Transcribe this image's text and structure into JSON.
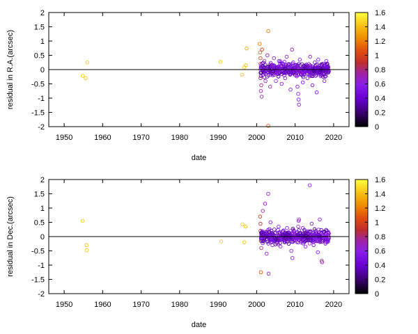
{
  "chart_data": [
    {
      "type": "scatter",
      "xlabel": "date",
      "ylabel": "residual in R.A.(arcsec)",
      "xlim": [
        1946,
        2024
      ],
      "ylim": [
        -2,
        2
      ],
      "xticks": [
        "1950",
        "1960",
        "1970",
        "1980",
        "1990",
        "2000",
        "2010",
        "2020"
      ],
      "yticks": [
        "-2",
        "-1.5",
        "-1",
        "-0.5",
        "0",
        "0.5",
        "1",
        "1.5",
        "2"
      ],
      "zero_line": true,
      "colorbar": {
        "range": [
          0,
          1.6
        ],
        "ticks": [
          "0",
          "0.2",
          "0.4",
          "0.6",
          "0.8",
          "1",
          "1.2",
          "1.4",
          "1.6"
        ],
        "palette": [
          "#000000",
          "#3a0070",
          "#6a00d8",
          "#8a1ee8",
          "#a0249e",
          "#c02c2c",
          "#e04a10",
          "#f08a00",
          "#f8c010",
          "#ffff40"
        ]
      },
      "points": [
        {
          "x": 1954.8,
          "y": -0.22,
          "c": 1.45
        },
        {
          "x": 1955.6,
          "y": -0.3,
          "c": 1.45
        },
        {
          "x": 1956.0,
          "y": 0.25,
          "c": 1.45
        },
        {
          "x": 1990.6,
          "y": 0.27,
          "c": 1.45
        },
        {
          "x": 1996.2,
          "y": -0.18,
          "c": 1.45
        },
        {
          "x": 1996.8,
          "y": 0.08,
          "c": 1.45
        },
        {
          "x": 1997.2,
          "y": 0.15,
          "c": 1.4
        },
        {
          "x": 1997.4,
          "y": 0.74,
          "c": 1.35
        },
        {
          "x": 2000.8,
          "y": 0.9,
          "c": 1.2
        },
        {
          "x": 2000.9,
          "y": 0.6,
          "c": 1.15
        },
        {
          "x": 2001.0,
          "y": 0.4,
          "c": 1.0
        },
        {
          "x": 2001.0,
          "y": 0.2,
          "c": 0.9
        },
        {
          "x": 2001.1,
          "y": -0.1,
          "c": 0.85
        },
        {
          "x": 2001.0,
          "y": -0.3,
          "c": 0.8
        },
        {
          "x": 2001.2,
          "y": -0.55,
          "c": 0.75
        },
        {
          "x": 2001.1,
          "y": -0.75,
          "c": 0.7
        },
        {
          "x": 2001.3,
          "y": -0.95,
          "c": 0.7
        },
        {
          "x": 2001.3,
          "y": 0.05,
          "c": 0.9
        },
        {
          "x": 2001.4,
          "y": 0.7,
          "c": 1.0
        },
        {
          "x": 2002.0,
          "y": 0.3,
          "c": 0.7
        },
        {
          "x": 2002.3,
          "y": -0.4,
          "c": 0.6
        },
        {
          "x": 2002.8,
          "y": 0.5,
          "c": 0.65
        },
        {
          "x": 2003.0,
          "y": 1.35,
          "c": 1.2
        },
        {
          "x": 2003.0,
          "y": -1.97,
          "c": 1.1
        },
        {
          "x": 2003.5,
          "y": -0.6,
          "c": 0.6
        },
        {
          "x": 2003.8,
          "y": 0.15,
          "c": 0.55
        },
        {
          "x": 2004.2,
          "y": -0.2,
          "c": 0.5
        },
        {
          "x": 2004.5,
          "y": 0.4,
          "c": 0.6
        },
        {
          "x": 2005.0,
          "y": -0.4,
          "c": 0.55
        },
        {
          "x": 2005.4,
          "y": 0.1,
          "c": 0.45
        },
        {
          "x": 2005.8,
          "y": 0.3,
          "c": 0.5
        },
        {
          "x": 2006.1,
          "y": -0.1,
          "c": 0.45
        },
        {
          "x": 2006.5,
          "y": -0.5,
          "c": 0.55
        },
        {
          "x": 2007.0,
          "y": 0.2,
          "c": 0.5
        },
        {
          "x": 2007.4,
          "y": -0.3,
          "c": 0.5
        },
        {
          "x": 2007.8,
          "y": 0.45,
          "c": 0.55
        },
        {
          "x": 2008.3,
          "y": 0.05,
          "c": 0.5
        },
        {
          "x": 2008.8,
          "y": -0.7,
          "c": 0.6
        },
        {
          "x": 2009.2,
          "y": 0.7,
          "c": 0.6
        },
        {
          "x": 2009.5,
          "y": 0.25,
          "c": 0.55
        },
        {
          "x": 2010.0,
          "y": -0.2,
          "c": 0.5
        },
        {
          "x": 2010.6,
          "y": -0.6,
          "c": 0.5
        },
        {
          "x": 2010.8,
          "y": -0.85,
          "c": 0.55
        },
        {
          "x": 2010.9,
          "y": -1.05,
          "c": 0.55
        },
        {
          "x": 2011.0,
          "y": -1.23,
          "c": 0.55
        },
        {
          "x": 2011.2,
          "y": 0.35,
          "c": 0.5
        },
        {
          "x": 2012.0,
          "y": -0.45,
          "c": 0.5
        },
        {
          "x": 2012.6,
          "y": 0.15,
          "c": 0.4
        },
        {
          "x": 2013.2,
          "y": -0.3,
          "c": 0.45
        },
        {
          "x": 2013.9,
          "y": 0.45,
          "c": 0.55
        },
        {
          "x": 2014.5,
          "y": -0.55,
          "c": 0.5
        },
        {
          "x": 2015.1,
          "y": 0.25,
          "c": 0.45
        },
        {
          "x": 2015.6,
          "y": -0.8,
          "c": 0.55
        },
        {
          "x": 2016.0,
          "y": 0.35,
          "c": 0.5
        },
        {
          "x": 2016.6,
          "y": -0.15,
          "c": 0.45
        },
        {
          "x": 2017.2,
          "y": 0.05,
          "c": 0.3
        },
        {
          "x": 2017.6,
          "y": -0.4,
          "c": 0.5
        },
        {
          "x": 2018.1,
          "y": 0.3,
          "c": 0.5
        },
        {
          "x": 2018.6,
          "y": 0.0,
          "c": 0.2
        }
      ]
    },
    {
      "type": "scatter",
      "xlabel": "date",
      "ylabel": "residual in Dec.(arcsec)",
      "xlim": [
        1946,
        2024
      ],
      "ylim": [
        -2,
        2
      ],
      "xticks": [
        "1950",
        "1960",
        "1970",
        "1980",
        "1990",
        "2000",
        "2010",
        "2020"
      ],
      "yticks": [
        "-2",
        "-1.5",
        "-1",
        "-0.5",
        "0",
        "0.5",
        "1",
        "1.5",
        "2"
      ],
      "zero_line": true,
      "colorbar": {
        "range": [
          0,
          1.6
        ],
        "ticks": [
          "0",
          "0.2",
          "0.4",
          "0.6",
          "0.8",
          "1",
          "1.2",
          "1.4",
          "1.6"
        ],
        "palette": [
          "#000000",
          "#3a0070",
          "#6a00d8",
          "#8a1ee8",
          "#a0249e",
          "#c02c2c",
          "#e04a10",
          "#f08a00",
          "#f8c010",
          "#ffff40"
        ]
      },
      "points": [
        {
          "x": 1954.8,
          "y": 0.55,
          "c": 1.45
        },
        {
          "x": 1955.8,
          "y": -0.3,
          "c": 1.45
        },
        {
          "x": 1955.9,
          "y": -0.48,
          "c": 1.45
        },
        {
          "x": 1990.8,
          "y": -0.17,
          "c": 1.45
        },
        {
          "x": 1996.3,
          "y": 0.43,
          "c": 1.45
        },
        {
          "x": 1996.8,
          "y": -0.2,
          "c": 1.45
        },
        {
          "x": 1997.1,
          "y": 0.35,
          "c": 1.4
        },
        {
          "x": 2000.9,
          "y": 0.7,
          "c": 1.0
        },
        {
          "x": 2001.0,
          "y": 0.45,
          "c": 0.9
        },
        {
          "x": 2001.0,
          "y": 0.2,
          "c": 0.85
        },
        {
          "x": 2001.1,
          "y": -0.15,
          "c": 0.8
        },
        {
          "x": 2001.2,
          "y": -0.4,
          "c": 0.8
        },
        {
          "x": 2001.1,
          "y": -1.25,
          "c": 1.1
        },
        {
          "x": 2001.6,
          "y": 0.9,
          "c": 0.65
        },
        {
          "x": 2002.2,
          "y": 1.15,
          "c": 0.6
        },
        {
          "x": 2002.6,
          "y": -0.6,
          "c": 0.6
        },
        {
          "x": 2003.0,
          "y": 1.5,
          "c": 0.6
        },
        {
          "x": 2003.1,
          "y": -1.3,
          "c": 0.6
        },
        {
          "x": 2003.6,
          "y": 0.5,
          "c": 0.55
        },
        {
          "x": 2004.1,
          "y": -0.3,
          "c": 0.55
        },
        {
          "x": 2004.6,
          "y": 0.25,
          "c": 0.5
        },
        {
          "x": 2005.2,
          "y": -0.1,
          "c": 0.5
        },
        {
          "x": 2005.7,
          "y": 0.35,
          "c": 0.5
        },
        {
          "x": 2006.2,
          "y": -0.35,
          "c": 0.55
        },
        {
          "x": 2006.8,
          "y": 0.05,
          "c": 0.45
        },
        {
          "x": 2007.3,
          "y": -0.2,
          "c": 0.45
        },
        {
          "x": 2007.9,
          "y": 0.3,
          "c": 0.5
        },
        {
          "x": 2008.4,
          "y": -0.1,
          "c": 0.45
        },
        {
          "x": 2009.0,
          "y": -0.5,
          "c": 0.55
        },
        {
          "x": 2009.3,
          "y": -0.75,
          "c": 0.55
        },
        {
          "x": 2009.7,
          "y": 0.2,
          "c": 0.5
        },
        {
          "x": 2010.3,
          "y": 0.0,
          "c": 0.45
        },
        {
          "x": 2010.8,
          "y": 0.35,
          "c": 0.6
        },
        {
          "x": 2010.9,
          "y": 0.55,
          "c": 0.6
        },
        {
          "x": 2011.0,
          "y": 0.6,
          "c": 0.6
        },
        {
          "x": 2011.5,
          "y": -0.2,
          "c": 0.5
        },
        {
          "x": 2012.0,
          "y": 0.3,
          "c": 0.45
        },
        {
          "x": 2012.7,
          "y": -0.35,
          "c": 0.5
        },
        {
          "x": 2013.3,
          "y": 0.1,
          "c": 0.4
        },
        {
          "x": 2013.8,
          "y": 1.8,
          "c": 0.55
        },
        {
          "x": 2014.3,
          "y": 0.45,
          "c": 0.5
        },
        {
          "x": 2014.8,
          "y": -0.3,
          "c": 0.5
        },
        {
          "x": 2015.3,
          "y": 0.2,
          "c": 0.45
        },
        {
          "x": 2015.9,
          "y": -0.55,
          "c": 0.55
        },
        {
          "x": 2016.4,
          "y": 0.6,
          "c": 0.55
        },
        {
          "x": 2016.9,
          "y": -0.85,
          "c": 0.7
        },
        {
          "x": 2017.0,
          "y": -0.9,
          "c": 0.7
        },
        {
          "x": 2017.5,
          "y": 0.15,
          "c": 0.4
        },
        {
          "x": 2018.0,
          "y": -0.2,
          "c": 0.45
        },
        {
          "x": 2018.5,
          "y": 0.05,
          "c": 0.2
        }
      ]
    }
  ]
}
